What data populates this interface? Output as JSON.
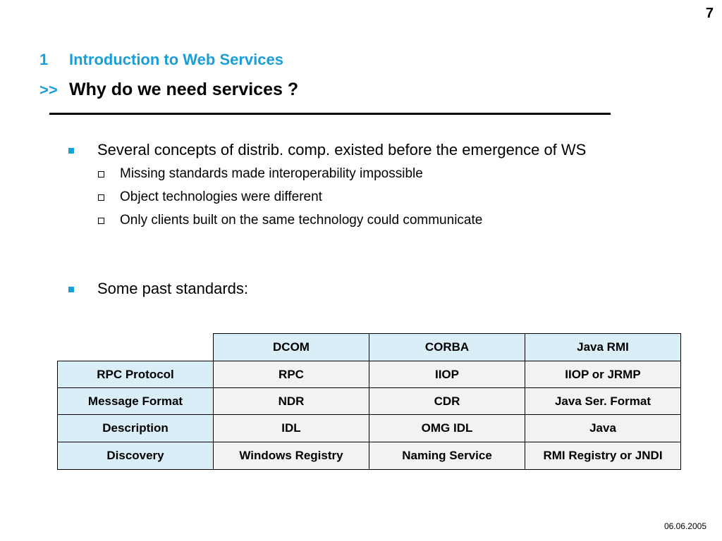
{
  "page_number": "7",
  "section": {
    "number": "1",
    "title": "Introduction to Web Services"
  },
  "slide_title": {
    "arrow": ">>",
    "text": "Why do we need services ?"
  },
  "bullets": [
    {
      "text": "Several concepts of distrib. comp. existed before the emergence of WS",
      "sub": [
        "Missing standards made interoperability impossible",
        "Object technologies were different",
        "Only clients built on the same technology could communicate"
      ]
    },
    {
      "text": "Some past standards:",
      "sub": []
    }
  ],
  "table": {
    "columns": [
      "DCOM",
      "CORBA",
      "Java RMI"
    ],
    "rows": [
      {
        "label": "RPC Protocol",
        "values": [
          "RPC",
          "IIOP",
          "IIOP or JRMP"
        ]
      },
      {
        "label": "Message Format",
        "values": [
          "NDR",
          "CDR",
          "Java Ser. Format"
        ]
      },
      {
        "label": "Description",
        "values": [
          "IDL",
          "OMG IDL",
          "Java"
        ]
      },
      {
        "label": "Discovery",
        "values": [
          "Windows Registry",
          "Naming Service",
          "RMI Registry or JNDI"
        ]
      }
    ]
  },
  "footer": {
    "date": "06.06.2005"
  },
  "colors": {
    "accent": "#1a9ed8",
    "table_header_bg": "#daeef8",
    "table_cell_bg": "#f2f2f2"
  }
}
